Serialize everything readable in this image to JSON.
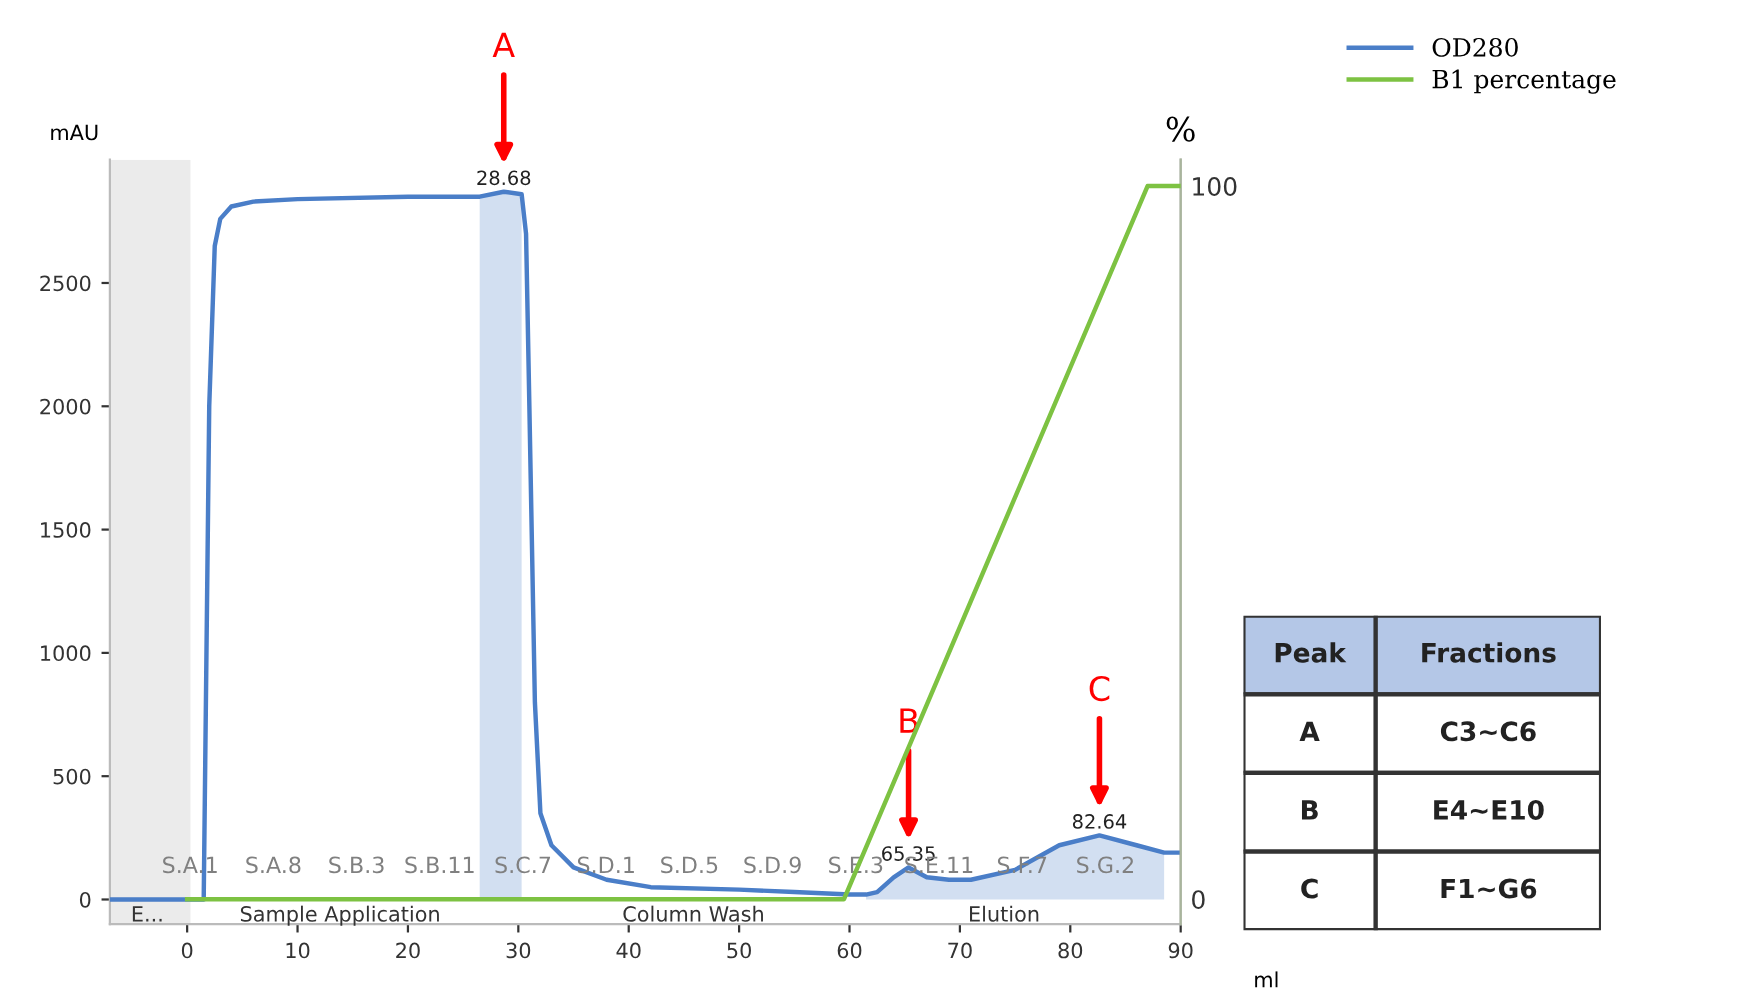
{
  "chart_data": [
    {
      "type": "line",
      "ylabel": "mAU",
      "y2label": "%",
      "xlabel": "ml",
      "x": [
        -7,
        0,
        1.5,
        2,
        2.5,
        3,
        4,
        6,
        10,
        20,
        26.5,
        28.68,
        30.3,
        30.7,
        31,
        31.5,
        32,
        33,
        35,
        38,
        42,
        50,
        55,
        60,
        61.5,
        62.5,
        64,
        65.35,
        67,
        69,
        71,
        75,
        79,
        82.64,
        86,
        88.5,
        90
      ],
      "series": [
        {
          "name": "OD280",
          "color": "#4a7ec8",
          "values": [
            0,
            0,
            0,
            2000,
            2650,
            2760,
            2810,
            2830,
            2840,
            2850,
            2850,
            2870,
            2860,
            2700,
            2000,
            800,
            350,
            220,
            130,
            80,
            50,
            40,
            30,
            20,
            20,
            30,
            90,
            130,
            90,
            80,
            80,
            120,
            220,
            260,
            220,
            190,
            190
          ]
        },
        {
          "type": "area",
          "color": "#4a7ec8",
          "x": [
            26.5,
            28.68,
            30.3
          ],
          "values": [
            2850,
            2870,
            2860
          ]
        },
        {
          "type": "area",
          "color": "#4a7ec8",
          "x": [
            61.5,
            62.5,
            64,
            65.35,
            67,
            69,
            71,
            75,
            79,
            82.64,
            86,
            88.5
          ],
          "values": [
            20,
            30,
            90,
            130,
            90,
            80,
            80,
            120,
            220,
            260,
            220,
            190
          ]
        },
        {
          "name": "B1 percentage",
          "color": "#7dc242",
          "axis": "y2",
          "x": [
            0,
            59.5,
            87,
            90
          ],
          "values": [
            0,
            0,
            100,
            100
          ]
        }
      ],
      "xlim": [
        -7,
        90
      ],
      "xticks": [
        0,
        10,
        20,
        30,
        40,
        50,
        60,
        70,
        80,
        90
      ],
      "ylim": [
        -100,
        3000
      ],
      "yticks": [
        0,
        500,
        1000,
        1500,
        2000,
        2500
      ],
      "y2lim": [
        -3.5,
        103.7
      ],
      "y2ticks": [
        0,
        100
      ],
      "bands": [
        {
          "axis": "x",
          "from": -7,
          "to": 0.3,
          "color": "#ebebeb"
        }
      ],
      "legend": "top right",
      "annotations": [
        {
          "text": "28.68",
          "x": 28.68,
          "y": 2870
        },
        {
          "text": "65.35",
          "x": 65.35,
          "y": 130
        },
        {
          "text": "82.64",
          "x": 82.64,
          "y": 260
        },
        "A",
        "B",
        "C",
        "S.A.1",
        "S.A.8",
        "S.B.3",
        "S.B.11",
        "S.C.7",
        "S.D.1",
        "S.D.5",
        "S.D.9",
        "S.E.3",
        "S.E.11",
        "S.F.7",
        "S.G.2",
        "E...",
        "Sample Application",
        "Column Wash",
        "Elution"
      ]
    },
    {
      "type": "other",
      "annotations": [
        "Peak",
        "Fractions",
        "A",
        "C3∼C6",
        "B",
        "E4∼E10",
        "C",
        "F1∼G6"
      ]
    }
  ]
}
